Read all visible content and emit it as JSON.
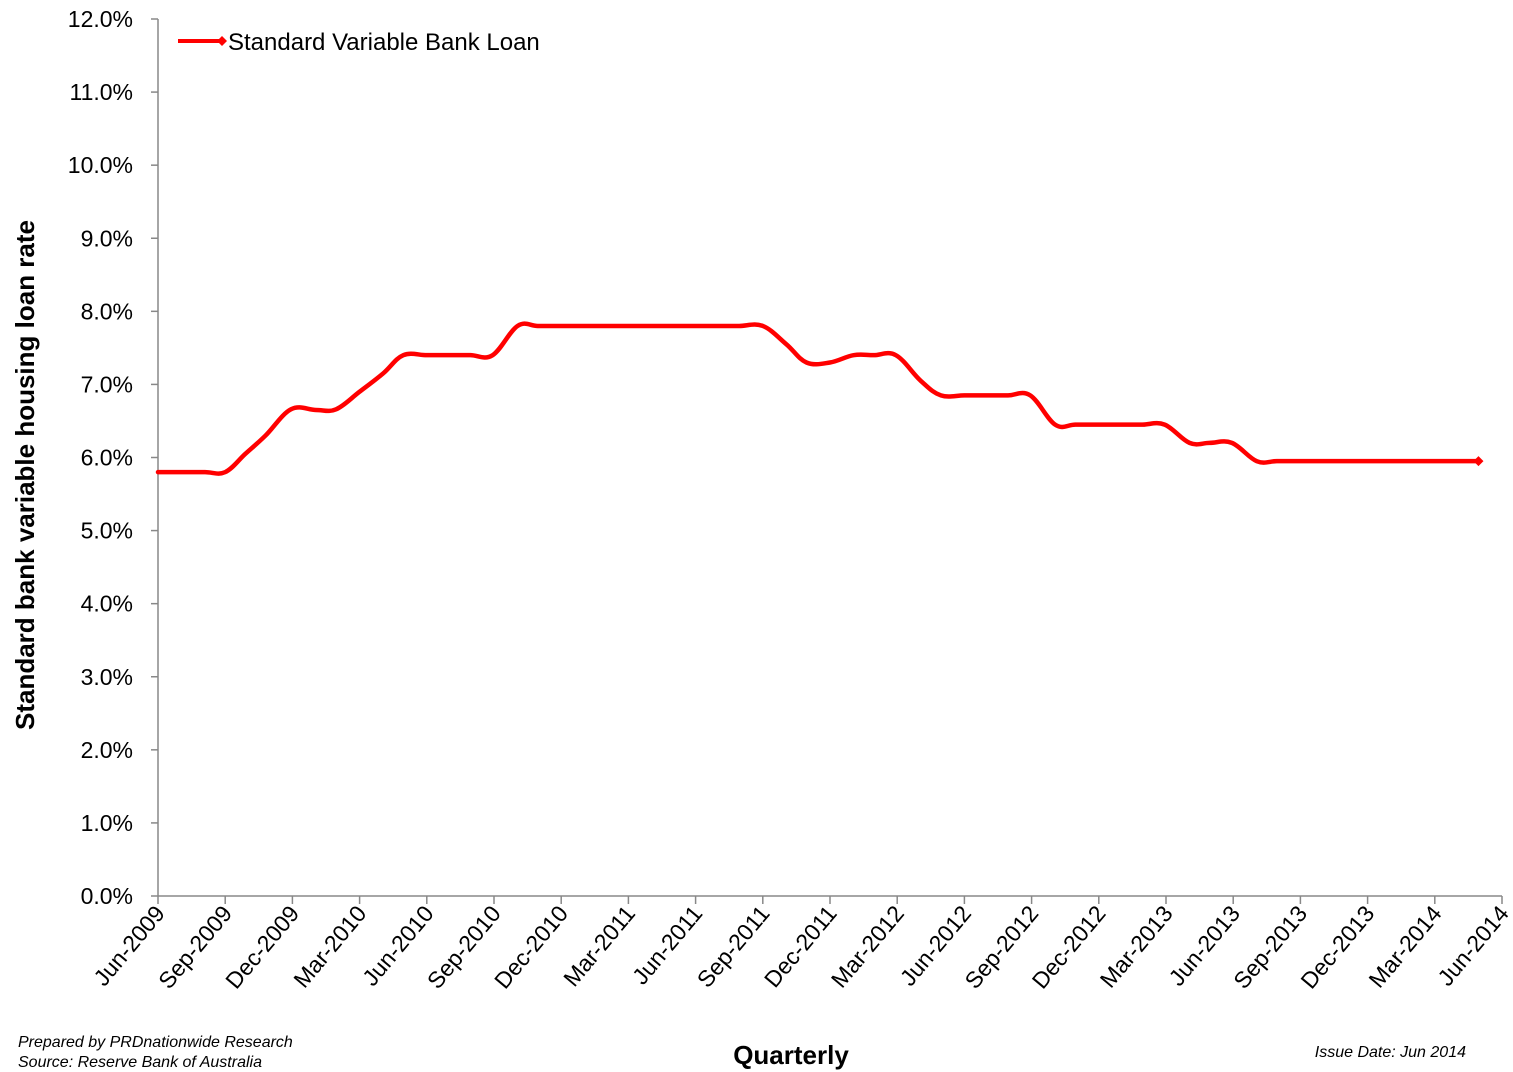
{
  "chart_data": {
    "type": "line",
    "title": "",
    "xlabel": "Quarterly",
    "ylabel": "Standard bank variable housing loan rate",
    "ylim": [
      0,
      12
    ],
    "y_ticks": [
      "0.0%",
      "1.0%",
      "2.0%",
      "3.0%",
      "4.0%",
      "5.0%",
      "6.0%",
      "7.0%",
      "8.0%",
      "9.0%",
      "10.0%",
      "11.0%",
      "12.0%"
    ],
    "categories": [
      "Jun-2009",
      "Sep-2009",
      "Dec-2009",
      "Mar-2010",
      "Jun-2010",
      "Sep-2010",
      "Dec-2010",
      "Mar-2011",
      "Jun-2011",
      "Sep-2011",
      "Dec-2011",
      "Mar-2012",
      "Jun-2012",
      "Sep-2012",
      "Dec-2012",
      "Mar-2013",
      "Jun-2013",
      "Sep-2013",
      "Dec-2013",
      "Mar-2014",
      "Jun-2014"
    ],
    "grid": false,
    "legend": "top-left",
    "series": [
      {
        "name": "Standard Variable Bank Loan",
        "color": "#ff0000",
        "points": [
          [
            0.0,
            5.8
          ],
          [
            0.35,
            5.8
          ],
          [
            0.7,
            5.8
          ],
          [
            1.0,
            5.8
          ],
          [
            1.3,
            6.05
          ],
          [
            1.6,
            6.3
          ],
          [
            1.98,
            6.66
          ],
          [
            2.35,
            6.65
          ],
          [
            2.65,
            6.66
          ],
          [
            3.0,
            6.9
          ],
          [
            3.35,
            7.15
          ],
          [
            3.65,
            7.4
          ],
          [
            4.0,
            7.4
          ],
          [
            4.35,
            7.4
          ],
          [
            4.65,
            7.4
          ],
          [
            4.98,
            7.4
          ],
          [
            5.35,
            7.8
          ],
          [
            5.65,
            7.8
          ],
          [
            6.0,
            7.8
          ],
          [
            6.35,
            7.8
          ],
          [
            6.65,
            7.8
          ],
          [
            7.0,
            7.8
          ],
          [
            7.35,
            7.8
          ],
          [
            7.65,
            7.8
          ],
          [
            8.0,
            7.8
          ],
          [
            8.35,
            7.8
          ],
          [
            8.65,
            7.8
          ],
          [
            9.0,
            7.8
          ],
          [
            9.35,
            7.55
          ],
          [
            9.65,
            7.3
          ],
          [
            10.0,
            7.3
          ],
          [
            10.35,
            7.4
          ],
          [
            10.65,
            7.4
          ],
          [
            10.98,
            7.4
          ],
          [
            11.35,
            7.05
          ],
          [
            11.65,
            6.85
          ],
          [
            12.0,
            6.85
          ],
          [
            12.35,
            6.85
          ],
          [
            12.65,
            6.85
          ],
          [
            12.98,
            6.85
          ],
          [
            13.35,
            6.45
          ],
          [
            13.65,
            6.45
          ],
          [
            14.0,
            6.45
          ],
          [
            14.35,
            6.45
          ],
          [
            14.65,
            6.45
          ],
          [
            14.98,
            6.45
          ],
          [
            15.35,
            6.2
          ],
          [
            15.65,
            6.2
          ],
          [
            15.98,
            6.2
          ],
          [
            16.35,
            5.95
          ],
          [
            16.65,
            5.95
          ],
          [
            17.0,
            5.95
          ],
          [
            17.35,
            5.95
          ],
          [
            17.65,
            5.95
          ],
          [
            18.0,
            5.95
          ],
          [
            18.35,
            5.95
          ],
          [
            18.65,
            5.95
          ],
          [
            19.0,
            5.95
          ],
          [
            19.35,
            5.95
          ],
          [
            19.65,
            5.95
          ]
        ],
        "marker_last": true
      }
    ]
  },
  "footer": {
    "prepared_by": "Prepared by PRDnationwide Research",
    "source": "Source:  Reserve Bank of Australia",
    "issue_date": "Issue Date: Jun 2014"
  }
}
